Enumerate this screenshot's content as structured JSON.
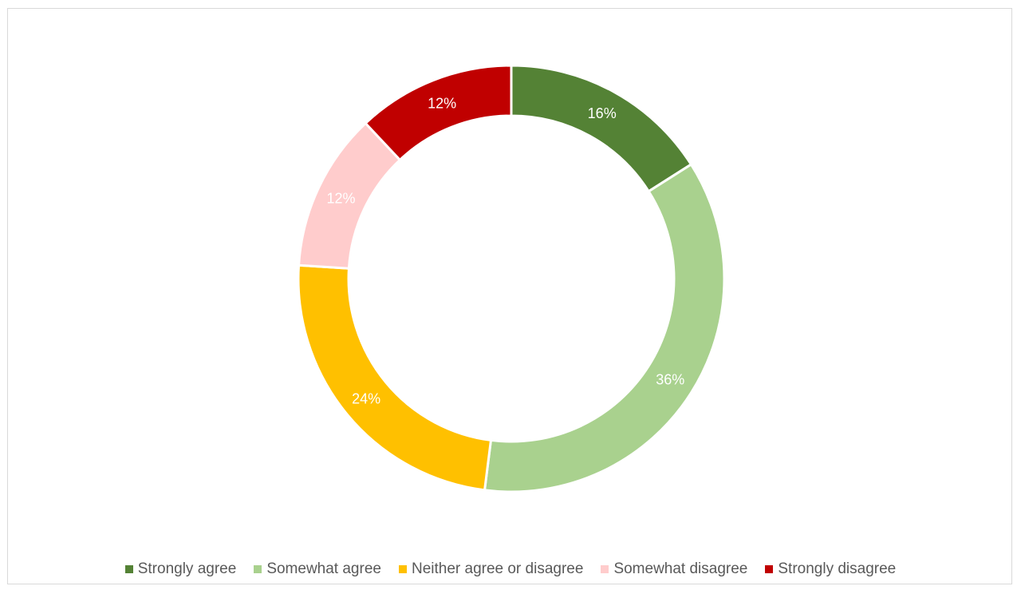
{
  "chart_data": {
    "type": "pie",
    "variant": "donut",
    "legend_position": "bottom",
    "series": [
      {
        "name": "Strongly agree",
        "value": 16,
        "label": "16%",
        "color": "#548235"
      },
      {
        "name": "Somewhat agree",
        "value": 36,
        "label": "36%",
        "color": "#a9d18e"
      },
      {
        "name": "Neither agree or disagree",
        "value": 24,
        "label": "24%",
        "color": "#ffc000"
      },
      {
        "name": "Somewhat disagree",
        "value": 12,
        "label": "12%",
        "color": "#ffcccc"
      },
      {
        "name": "Strongly disagree",
        "value": 12,
        "label": "12%",
        "color": "#c00000"
      }
    ]
  }
}
